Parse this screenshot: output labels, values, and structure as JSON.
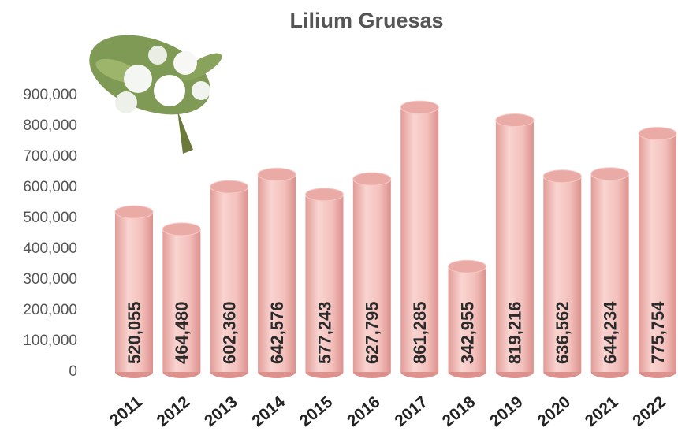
{
  "chart_data": {
    "type": "bar",
    "title": "Lilium Gruesas",
    "categories": [
      "2011",
      "2012",
      "2013",
      "2014",
      "2015",
      "2016",
      "2017",
      "2018",
      "2019",
      "2020",
      "2021",
      "2022"
    ],
    "values": [
      520055,
      464480,
      602360,
      642576,
      577243,
      627795,
      861285,
      342955,
      819216,
      636562,
      644234,
      775754
    ],
    "value_labels": [
      "520,055",
      "464,480",
      "602,360",
      "642,576",
      "577,243",
      "627,795",
      "861,285",
      "342,955",
      "819,216",
      "636,562",
      "644,234",
      "775,754"
    ],
    "color": "#f2bcb8",
    "ylim": [
      0,
      900000
    ],
    "yticks": [
      0,
      {
        "value": 100000,
        "label": "100,000"
      },
      {
        "value": 200000,
        "label": "200,000"
      },
      {
        "value": 300000,
        "label": "300,000"
      },
      {
        "value": 400000,
        "label": "400,000"
      },
      {
        "value": 500000,
        "label": "500,000"
      },
      {
        "value": 600000,
        "label": "600,000"
      },
      {
        "value": 700000,
        "label": "700,000"
      },
      {
        "value": 800000,
        "label": "800,000"
      },
      {
        "value": 900000,
        "label": "900,000"
      }
    ],
    "grid": false
  }
}
